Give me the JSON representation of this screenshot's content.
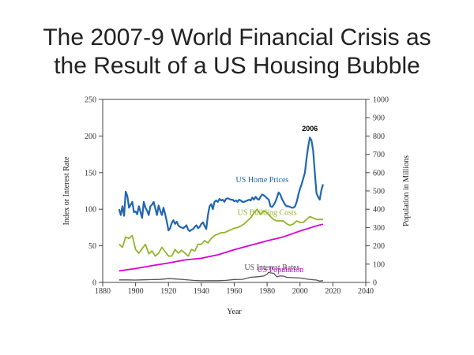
{
  "slide": {
    "title_line1": "The 2007-9 World Financial Crisis as",
    "title_line2": "the Result of a US Housing Bubble"
  },
  "chart_data": {
    "type": "line",
    "xlabel": "Year",
    "ylabel_left": "Index or Interest Rate",
    "ylabel_right": "Population in Millions",
    "xlim": [
      1880,
      2040
    ],
    "ylim_left": [
      0,
      250
    ],
    "ylim_right": [
      0,
      1000
    ],
    "x_ticks": [
      "1880",
      "1900",
      "1920",
      "1940",
      "1960",
      "1980",
      "2000",
      "2020",
      "2040"
    ],
    "y_ticks_left": [
      "0",
      "50",
      "100",
      "150",
      "200",
      "250"
    ],
    "y_ticks_right": [
      "0",
      "100",
      "200",
      "300",
      "400",
      "500",
      "600",
      "700",
      "800",
      "900",
      "1000"
    ],
    "grid": false,
    "annotations": [
      {
        "text": "2006",
        "x": 2006,
        "y": 205
      }
    ],
    "series": [
      {
        "name": "US Home Prices",
        "axis": "left",
        "color": "#1f67b1",
        "label_at": [
          1977,
          137
        ],
        "x": [
          1890,
          1891,
          1892,
          1893,
          1894,
          1895,
          1896,
          1897,
          1898,
          1899,
          1900,
          1901,
          1902,
          1903,
          1904,
          1905,
          1906,
          1907,
          1908,
          1909,
          1910,
          1911,
          1912,
          1913,
          1914,
          1915,
          1916,
          1917,
          1918,
          1919,
          1920,
          1921,
          1922,
          1923,
          1924,
          1925,
          1926,
          1927,
          1928,
          1929,
          1930,
          1931,
          1932,
          1933,
          1934,
          1935,
          1936,
          1937,
          1938,
          1939,
          1940,
          1941,
          1942,
          1943,
          1944,
          1945,
          1946,
          1947,
          1948,
          1949,
          1950,
          1951,
          1952,
          1953,
          1954,
          1955,
          1956,
          1957,
          1958,
          1959,
          1960,
          1961,
          1962,
          1963,
          1964,
          1965,
          1966,
          1967,
          1968,
          1969,
          1970,
          1971,
          1972,
          1973,
          1974,
          1975,
          1976,
          1977,
          1978,
          1979,
          1980,
          1981,
          1982,
          1983,
          1984,
          1985,
          1986,
          1987,
          1988,
          1989,
          1990,
          1991,
          1992,
          1993,
          1994,
          1995,
          1996,
          1997,
          1998,
          1999,
          2000,
          2001,
          2002,
          2003,
          2004,
          2005,
          2006,
          2007,
          2008,
          2009,
          2010,
          2011,
          2012,
          2013,
          2014
        ],
        "values": [
          100,
          92,
          104,
          91,
          124,
          118,
          102,
          106,
          110,
          96,
          97,
          93,
          104,
          96,
          88,
          110,
          102,
          98,
          92,
          104,
          106,
          110,
          101,
          92,
          105,
          98,
          92,
          102,
          93,
          83,
          71,
          74,
          81,
          85,
          80,
          83,
          78,
          76,
          75,
          74,
          76,
          78,
          72,
          70,
          72,
          73,
          76,
          78,
          74,
          76,
          80,
          82,
          77,
          73,
          92,
          104,
          107,
          100,
          110,
          112,
          110,
          114,
          112,
          113,
          110,
          114,
          115,
          114,
          113,
          113,
          111,
          112,
          110,
          113,
          112,
          110,
          110,
          111,
          112,
          113,
          112,
          116,
          113,
          117,
          114,
          113,
          117,
          120,
          119,
          117,
          115,
          113,
          104,
          103,
          106,
          110,
          116,
          123,
          120,
          114,
          110,
          106,
          104,
          104,
          103,
          102,
          102,
          104,
          110,
          120,
          128,
          134,
          142,
          150,
          170,
          186,
          198,
          194,
          180,
          150,
          122,
          117,
          113,
          126,
          134
        ]
      },
      {
        "name": "US Building Costs",
        "axis": "left",
        "color": "#92b52a",
        "label_at": [
          1980,
          92
        ],
        "x": [
          1890,
          1892,
          1894,
          1896,
          1898,
          1900,
          1902,
          1904,
          1906,
          1908,
          1910,
          1912,
          1914,
          1916,
          1918,
          1920,
          1922,
          1924,
          1926,
          1928,
          1930,
          1932,
          1934,
          1936,
          1938,
          1940,
          1942,
          1944,
          1946,
          1948,
          1950,
          1952,
          1954,
          1956,
          1958,
          1960,
          1962,
          1964,
          1966,
          1968,
          1970,
          1972,
          1974,
          1976,
          1978,
          1980,
          1982,
          1984,
          1986,
          1988,
          1990,
          1992,
          1994,
          1996,
          1998,
          2000,
          2002,
          2004,
          2006,
          2008,
          2010,
          2012,
          2014
        ],
        "values": [
          52,
          48,
          62,
          60,
          64,
          45,
          40,
          46,
          52,
          39,
          43,
          36,
          40,
          48,
          42,
          36,
          36,
          45,
          40,
          44,
          40,
          36,
          45,
          43,
          52,
          52,
          57,
          54,
          60,
          64,
          66,
          68,
          68,
          70,
          72,
          74,
          75,
          77,
          80,
          84,
          88,
          95,
          100,
          93,
          98,
          95,
          90,
          86,
          84,
          84,
          84,
          80,
          78,
          80,
          84,
          82,
          82,
          86,
          90,
          88,
          86,
          86,
          86
        ]
      },
      {
        "name": "US Population",
        "axis": "right",
        "color": "#d700d7",
        "label_at": [
          1988,
          56
        ],
        "x": [
          1890,
          1900,
          1910,
          1920,
          1930,
          1940,
          1950,
          1960,
          1970,
          1980,
          1990,
          2000,
          2010,
          2014
        ],
        "values": [
          63,
          76,
          92,
          106,
          123,
          132,
          151,
          179,
          203,
          227,
          249,
          281,
          309,
          318
        ]
      },
      {
        "name": "US Interest Rates",
        "axis": "left",
        "color": "#555555",
        "label_at": [
          1983,
          17
        ],
        "x": [
          1890,
          1895,
          1900,
          1905,
          1910,
          1915,
          1920,
          1925,
          1930,
          1935,
          1940,
          1945,
          1950,
          1955,
          1960,
          1965,
          1970,
          1975,
          1978,
          1980,
          1981,
          1982,
          1984,
          1986,
          1988,
          1990,
          1992,
          1995,
          2000,
          2005,
          2008,
          2010,
          2012,
          2014
        ],
        "values": [
          3.5,
          3.4,
          3.2,
          3.6,
          3.9,
          4.1,
          5.2,
          4.6,
          3.8,
          2.8,
          2.3,
          2.4,
          2.4,
          2.8,
          4.0,
          4.2,
          7.0,
          7.9,
          8.8,
          11.4,
          13.9,
          13.0,
          12.4,
          7.7,
          8.8,
          8.6,
          7.0,
          6.6,
          6.0,
          4.3,
          3.7,
          3.2,
          1.8,
          2.5
        ]
      }
    ]
  }
}
